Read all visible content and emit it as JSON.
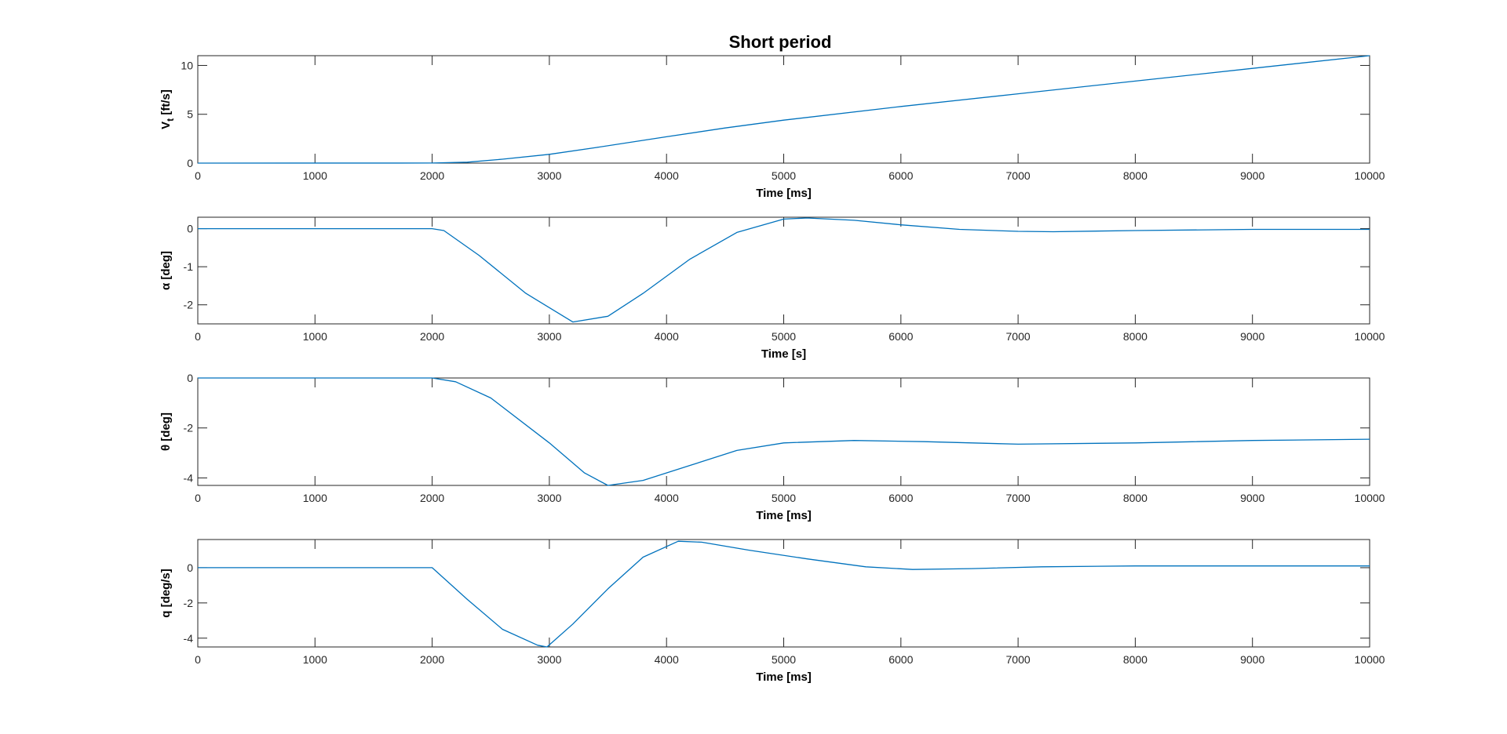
{
  "chart_data": [
    {
      "type": "line",
      "title": "Short period",
      "xlabel": "Time [ms]",
      "ylabel": "V",
      "ylabel_sub": "t",
      "ylabel_unit": " [ft/s]",
      "xlim": [
        0,
        10000
      ],
      "ylim": [
        0,
        11
      ],
      "xticks": [
        0,
        1000,
        2000,
        3000,
        4000,
        5000,
        6000,
        7000,
        8000,
        9000,
        10000
      ],
      "yticks": [
        0,
        5,
        10
      ],
      "color": "#0072BD",
      "series": [
        {
          "x": [
            0,
            2000,
            2300,
            2600,
            3000,
            3400,
            4000,
            4500,
            5000,
            6000,
            7000,
            8000,
            9000,
            10000
          ],
          "y": [
            0,
            0.01,
            0.1,
            0.4,
            0.9,
            1.6,
            2.7,
            3.6,
            4.4,
            5.8,
            7.1,
            8.4,
            9.7,
            11.0
          ]
        }
      ]
    },
    {
      "type": "line",
      "title": "",
      "xlabel": "Time [s]",
      "ylabel": "α [deg]",
      "xlim": [
        0,
        10000
      ],
      "ylim": [
        -2.5,
        0.3
      ],
      "xticks": [
        0,
        1000,
        2000,
        3000,
        4000,
        5000,
        6000,
        7000,
        8000,
        9000,
        10000
      ],
      "yticks": [
        -2,
        -1,
        0
      ],
      "color": "#0072BD",
      "series": [
        {
          "x": [
            0,
            2000,
            2100,
            2400,
            2800,
            3200,
            3500,
            3800,
            4200,
            4600,
            5000,
            5200,
            5600,
            6000,
            6500,
            7000,
            7300,
            8000,
            9000,
            10000
          ],
          "y": [
            0,
            0,
            -0.05,
            -0.7,
            -1.7,
            -2.45,
            -2.3,
            -1.7,
            -0.8,
            -0.1,
            0.25,
            0.28,
            0.22,
            0.1,
            -0.02,
            -0.07,
            -0.08,
            -0.05,
            -0.02,
            -0.02
          ]
        }
      ]
    },
    {
      "type": "line",
      "title": "",
      "xlabel": "Time [ms]",
      "ylabel": "θ [deg]",
      "xlim": [
        0,
        10000
      ],
      "ylim": [
        -4.3,
        0
      ],
      "xticks": [
        0,
        1000,
        2000,
        3000,
        4000,
        5000,
        6000,
        7000,
        8000,
        9000,
        10000
      ],
      "yticks": [
        -4,
        -2,
        0
      ],
      "color": "#0072BD",
      "series": [
        {
          "x": [
            0,
            2000,
            2200,
            2500,
            3000,
            3300,
            3500,
            3800,
            4200,
            4600,
            5000,
            5600,
            6200,
            7000,
            8000,
            9000,
            10000
          ],
          "y": [
            0,
            0,
            -0.15,
            -0.8,
            -2.6,
            -3.8,
            -4.3,
            -4.1,
            -3.5,
            -2.9,
            -2.6,
            -2.5,
            -2.55,
            -2.65,
            -2.6,
            -2.5,
            -2.45
          ]
        }
      ]
    },
    {
      "type": "line",
      "title": "",
      "xlabel": "Time [ms]",
      "ylabel": "q [deg/s]",
      "xlim": [
        0,
        10000
      ],
      "ylim": [
        -4.5,
        1.6
      ],
      "xticks": [
        0,
        1000,
        2000,
        3000,
        4000,
        5000,
        6000,
        7000,
        8000,
        9000,
        10000
      ],
      "yticks": [
        -4,
        -2,
        0
      ],
      "color": "#0072BD",
      "series": [
        {
          "x": [
            0,
            2000,
            2300,
            2600,
            2900,
            2980,
            3200,
            3500,
            3800,
            4100,
            4300,
            4700,
            5200,
            5700,
            6100,
            6600,
            7200,
            8000,
            9000,
            10000
          ],
          "y": [
            0,
            0,
            -1.8,
            -3.5,
            -4.4,
            -4.5,
            -3.2,
            -1.2,
            0.6,
            1.5,
            1.45,
            1.0,
            0.5,
            0.05,
            -0.1,
            -0.05,
            0.05,
            0.1,
            0.1,
            0.1
          ]
        }
      ]
    }
  ]
}
